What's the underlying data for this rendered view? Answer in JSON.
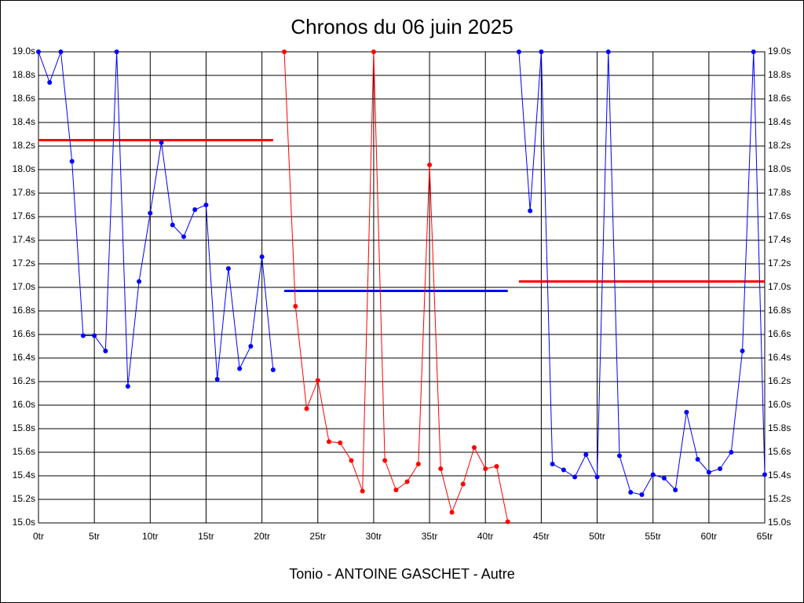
{
  "chart_data": {
    "type": "line",
    "title": "Chronos du 06 juin 2025",
    "x_label": "Tonio - ANTOINE GASCHET - Autre",
    "xlim": [
      0,
      65
    ],
    "xticks": [
      {
        "value": 0,
        "label": "0tr"
      },
      {
        "value": 5,
        "label": "5tr"
      },
      {
        "value": 10,
        "label": "10tr"
      },
      {
        "value": 15,
        "label": "15tr"
      },
      {
        "value": 20,
        "label": "20tr"
      },
      {
        "value": 25,
        "label": "25tr"
      },
      {
        "value": 30,
        "label": "30tr"
      },
      {
        "value": 35,
        "label": "35tr"
      },
      {
        "value": 40,
        "label": "40tr"
      },
      {
        "value": 45,
        "label": "45tr"
      },
      {
        "value": 50,
        "label": "50tr"
      },
      {
        "value": 55,
        "label": "55tr"
      },
      {
        "value": 60,
        "label": "60tr"
      },
      {
        "value": 65,
        "label": "65tr"
      }
    ],
    "ylim": [
      15.0,
      19.0
    ],
    "yticks": [
      {
        "value": 19.0,
        "label": "19.0s"
      },
      {
        "value": 18.8,
        "label": "18.8s"
      },
      {
        "value": 18.6,
        "label": "18.6s"
      },
      {
        "value": 18.4,
        "label": "18.4s"
      },
      {
        "value": 18.2,
        "label": "18.2s"
      },
      {
        "value": 18.0,
        "label": "18.0s"
      },
      {
        "value": 17.8,
        "label": "17.8s"
      },
      {
        "value": 17.6,
        "label": "17.6s"
      },
      {
        "value": 17.4,
        "label": "17.4s"
      },
      {
        "value": 17.2,
        "label": "17.2s"
      },
      {
        "value": 17.0,
        "label": "17.0s"
      },
      {
        "value": 16.8,
        "label": "16.8s"
      },
      {
        "value": 16.6,
        "label": "16.6s"
      },
      {
        "value": 16.4,
        "label": "16.4s"
      },
      {
        "value": 16.2,
        "label": "16.2s"
      },
      {
        "value": 16.0,
        "label": "16.0s"
      },
      {
        "value": 15.8,
        "label": "15.8s"
      },
      {
        "value": 15.6,
        "label": "15.6s"
      },
      {
        "value": 15.4,
        "label": "15.4s"
      },
      {
        "value": 15.2,
        "label": "15.2s"
      },
      {
        "value": 15.0,
        "label": "15.0s"
      }
    ],
    "grid": true,
    "series": [
      {
        "color": "#0000ff",
        "x": [
          0,
          1,
          2,
          3,
          4,
          5,
          6,
          7,
          8,
          9,
          10,
          11,
          12,
          13,
          14,
          15,
          16,
          17,
          18,
          19,
          20,
          21
        ],
        "values": [
          19.0,
          18.74,
          19.0,
          18.07,
          16.59,
          16.59,
          16.46,
          19.0,
          16.16,
          17.05,
          17.63,
          18.23,
          17.53,
          17.43,
          17.66,
          17.7,
          16.22,
          17.16,
          16.31,
          16.5,
          17.26,
          16.3
        ]
      },
      {
        "color": "#ff0000",
        "x": [
          22,
          23,
          24,
          25,
          26,
          27,
          28,
          29,
          30,
          31,
          32,
          33,
          34,
          35,
          36,
          37,
          38,
          39,
          40,
          41,
          42
        ],
        "values": [
          19.0,
          16.84,
          15.97,
          16.21,
          15.69,
          15.68,
          15.53,
          15.27,
          19.0,
          15.53,
          15.28,
          15.35,
          15.5,
          18.04,
          15.46,
          15.09,
          15.33,
          15.64,
          15.46,
          15.48,
          15.01
        ]
      },
      {
        "color": "#0000ff",
        "x": [
          43,
          44,
          45,
          46,
          47,
          48,
          49,
          50,
          51,
          52,
          53,
          54,
          55,
          56,
          57,
          58,
          59,
          60,
          61,
          62,
          63,
          64,
          65
        ],
        "values": [
          19.0,
          17.65,
          19.0,
          15.5,
          15.45,
          15.39,
          15.58,
          15.39,
          19.0,
          15.57,
          15.26,
          15.24,
          15.41,
          15.38,
          15.28,
          15.94,
          15.54,
          15.43,
          15.46,
          15.6,
          16.46,
          19.0,
          15.41
        ]
      }
    ],
    "reference_lines": [
      {
        "value": 18.25,
        "from": 0,
        "to": 21,
        "color": "#ff0000"
      },
      {
        "value": 16.97,
        "from": 22,
        "to": 42,
        "color": "#0000ff"
      },
      {
        "value": 17.05,
        "from": 43,
        "to": 65,
        "color": "#ff0000"
      }
    ]
  }
}
